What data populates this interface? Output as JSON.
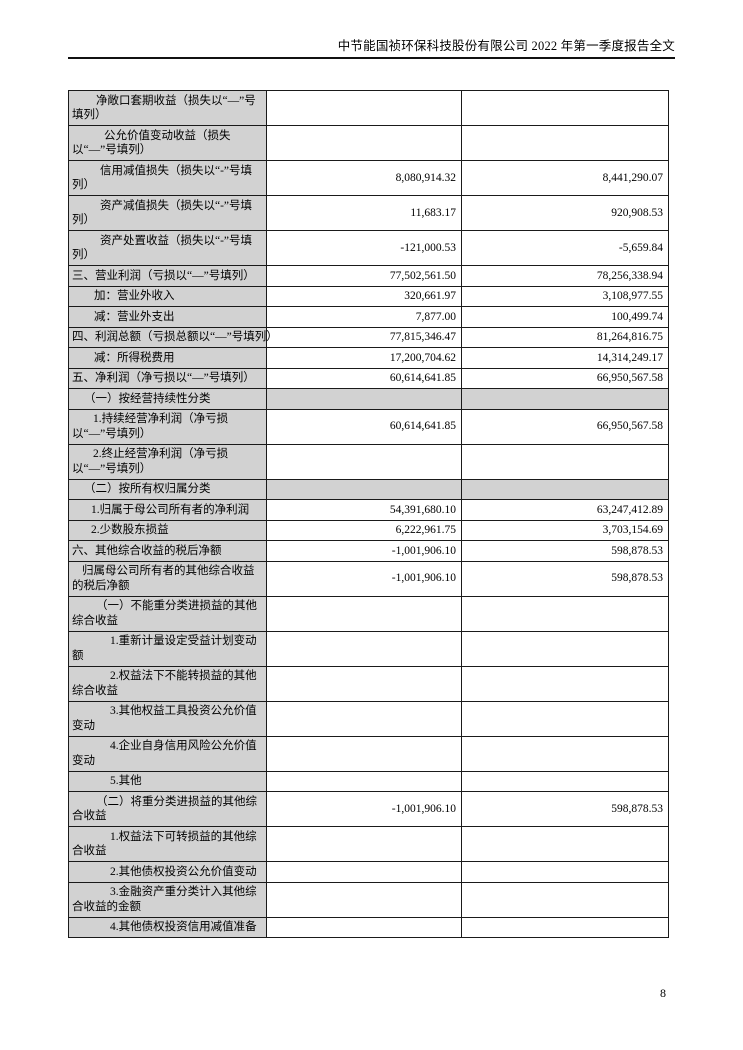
{
  "header": {
    "title": "中节能国祯环保科技股份有限公司 2022 年第一季度报告全文"
  },
  "table": {
    "rows": [
      {
        "label": "净敞口套期收益（损失以“—”号填列）",
        "current": "",
        "prior": "",
        "indent": 24,
        "shaded": false,
        "nowrap": false
      },
      {
        "label": "公允价值变动收益（损失以“—”号填列）",
        "current": "",
        "prior": "",
        "indent": 32,
        "shaded": false,
        "nowrap": false
      },
      {
        "label": "信用减值损失（损失以“-”号填列）",
        "current": "8,080,914.32",
        "prior": "8,441,290.07",
        "indent": 28,
        "shaded": false,
        "nowrap": false
      },
      {
        "label": "资产减值损失（损失以“-”号填列）",
        "current": "11,683.17",
        "prior": "920,908.53",
        "indent": 28,
        "shaded": false,
        "nowrap": false
      },
      {
        "label": "资产处置收益（损失以“-”号填列）",
        "current": "-121,000.53",
        "prior": "-5,659.84",
        "indent": 28,
        "shaded": false,
        "nowrap": false
      },
      {
        "label": "三、营业利润（亏损以“—”号填列）",
        "current": "77,502,561.50",
        "prior": "78,256,338.94",
        "indent": 0,
        "shaded": false,
        "nowrap": true
      },
      {
        "label": "加：营业外收入",
        "current": "320,661.97",
        "prior": "3,108,977.55",
        "indent": 22,
        "shaded": false,
        "nowrap": false
      },
      {
        "label": "减：营业外支出",
        "current": "7,877.00",
        "prior": "100,499.74",
        "indent": 22,
        "shaded": false,
        "nowrap": false
      },
      {
        "label": "四、利润总额（亏损总额以“—”号填列）",
        "current": "77,815,346.47",
        "prior": "81,264,816.75",
        "indent": 0,
        "shaded": false,
        "nowrap": true
      },
      {
        "label": "减：所得税费用",
        "current": "17,200,704.62",
        "prior": "14,314,249.17",
        "indent": 22,
        "shaded": false,
        "nowrap": false
      },
      {
        "label": "五、净利润（净亏损以“—”号填列）",
        "current": "60,614,641.85",
        "prior": "66,950,567.58",
        "indent": 0,
        "shaded": false,
        "nowrap": true
      },
      {
        "label": "（一）按经营持续性分类",
        "current": "",
        "prior": "",
        "indent": 12,
        "shaded": true,
        "nowrap": true
      },
      {
        "label": "1.持续经营净利润（净亏损以“—”号填列）",
        "current": "60,614,641.85",
        "prior": "66,950,567.58",
        "indent": 21,
        "shaded": false,
        "nowrap": false
      },
      {
        "label": "2.终止经营净利润（净亏损以“—”号填列）",
        "current": "",
        "prior": "",
        "indent": 21,
        "shaded": false,
        "nowrap": false
      },
      {
        "label": "（二）按所有权归属分类",
        "current": "",
        "prior": "",
        "indent": 12,
        "shaded": true,
        "nowrap": true
      },
      {
        "label": "1.归属于母公司所有者的净利润",
        "current": "54,391,680.10",
        "prior": "63,247,412.89",
        "indent": 19,
        "shaded": false,
        "nowrap": true
      },
      {
        "label": "2.少数股东损益",
        "current": "6,222,961.75",
        "prior": "3,703,154.69",
        "indent": 19,
        "shaded": false,
        "nowrap": false
      },
      {
        "label": "六、其他综合收益的税后净额",
        "current": "-1,001,906.10",
        "prior": "598,878.53",
        "indent": 0,
        "shaded": false,
        "nowrap": true
      },
      {
        "label": "归属母公司所有者的其他综合收益的税后净额",
        "current": "-1,001,906.10",
        "prior": "598,878.53",
        "indent": 10,
        "shaded": false,
        "nowrap": false
      },
      {
        "label": "（一）不能重分类进损益的其他综合收益",
        "current": "",
        "prior": "",
        "indent": 24,
        "shaded": false,
        "nowrap": false
      },
      {
        "label": "1.重新计量设定受益计划变动额",
        "current": "",
        "prior": "",
        "indent": 38,
        "shaded": false,
        "nowrap": false
      },
      {
        "label": "2.权益法下不能转损益的其他综合收益",
        "current": "",
        "prior": "",
        "indent": 38,
        "shaded": false,
        "nowrap": false
      },
      {
        "label": "3.其他权益工具投资公允价值变动",
        "current": "",
        "prior": "",
        "indent": 38,
        "shaded": false,
        "nowrap": false
      },
      {
        "label": "4.企业自身信用风险公允价值变动",
        "current": "",
        "prior": "",
        "indent": 38,
        "shaded": false,
        "nowrap": false
      },
      {
        "label": "5.其他",
        "current": "",
        "prior": "",
        "indent": 38,
        "shaded": false,
        "nowrap": true
      },
      {
        "label": "（二）将重分类进损益的其他综合收益",
        "current": "-1,001,906.10",
        "prior": "598,878.53",
        "indent": 24,
        "shaded": false,
        "nowrap": false
      },
      {
        "label": "1.权益法下可转损益的其他综合收益",
        "current": "",
        "prior": "",
        "indent": 38,
        "shaded": false,
        "nowrap": false
      },
      {
        "label": "2.其他债权投资公允价值变动",
        "current": "",
        "prior": "",
        "indent": 38,
        "shaded": false,
        "nowrap": false
      },
      {
        "label": "3.金融资产重分类计入其他综合收益的金额",
        "current": "",
        "prior": "",
        "indent": 38,
        "shaded": false,
        "nowrap": false
      },
      {
        "label": "4.其他债权投资信用减值准备",
        "current": "",
        "prior": "",
        "indent": 38,
        "shaded": false,
        "nowrap": false
      }
    ]
  },
  "footer": {
    "page_number": "8"
  }
}
